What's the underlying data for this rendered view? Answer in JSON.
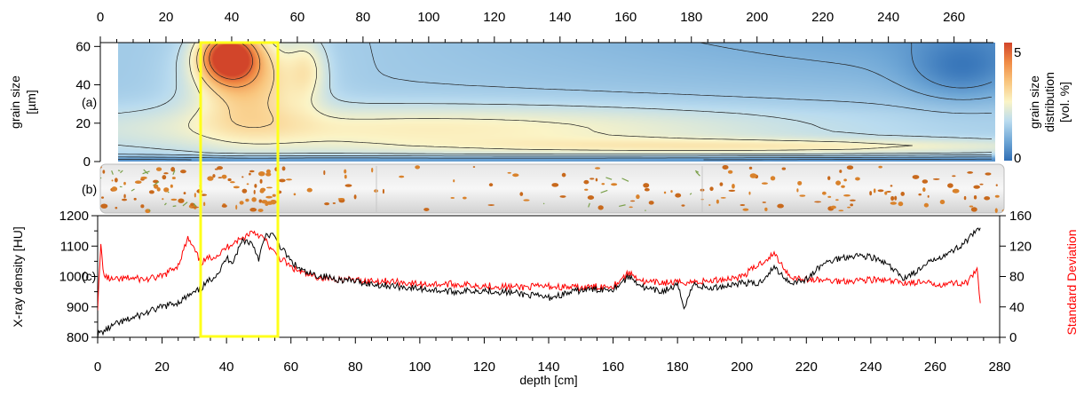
{
  "figure": {
    "panel_labels": [
      "(a)",
      "(b)",
      "(c)"
    ]
  },
  "colors": {
    "highlight_box": "#ffff1a",
    "density_line": "#000000",
    "sd_line": "#ff0000",
    "colormap": [
      "#2f6eb5",
      "#6fa7d6",
      "#b9dbef",
      "#fbf4c6",
      "#f9c67e",
      "#f08b45",
      "#d2452a"
    ]
  },
  "chart_data": [
    {
      "type": "heatmap",
      "panel": "(a)",
      "xlabel": "",
      "ylabel": "grain size [µm]",
      "ylabel_lines": [
        "grain size",
        "[µm]"
      ],
      "top_axis_ticks": [
        "0",
        "20",
        "40",
        "60",
        "80",
        "100",
        "120",
        "140",
        "160",
        "180",
        "200",
        "220",
        "240",
        "260"
      ],
      "xlim": [
        0,
        272
      ],
      "ylim": [
        0,
        62
      ],
      "yticks": [
        "0",
        "20",
        "40",
        "60"
      ],
      "colorbar": {
        "label_lines": [
          "grain size",
          "distribution",
          "[vol. %]"
        ],
        "min_label": "0",
        "max_label": "5",
        "range": [
          0,
          5
        ]
      },
      "contours": "black",
      "hotspots": [
        {
          "x": 39,
          "y": 55,
          "value": 5.0,
          "sx": 6,
          "sy": 9
        },
        {
          "x": 45,
          "y": 42,
          "value": 3.2,
          "sx": 12,
          "sy": 17
        },
        {
          "x": 63,
          "y": 48,
          "value": 2.2,
          "sx": 4,
          "sy": 12
        },
        {
          "x": 100,
          "y": 17,
          "value": 2.6,
          "sx": 80,
          "sy": 9
        },
        {
          "x": 210,
          "y": 8,
          "value": 2.4,
          "sx": 70,
          "sy": 3
        }
      ]
    },
    {
      "type": "image",
      "panel": "(b)",
      "description_marks": "core image"
    },
    {
      "type": "line",
      "panel": "(c)",
      "xlabel": "depth [cm]",
      "ylabel": "X-ray density [HU]",
      "y2label": "Standard Deviation",
      "xlim": [
        0,
        280
      ],
      "ylim": [
        800,
        1200
      ],
      "y2lim": [
        0,
        160
      ],
      "xticks": [
        "0",
        "20",
        "40",
        "60",
        "80",
        "100",
        "120",
        "140",
        "160",
        "180",
        "200",
        "220",
        "240",
        "260",
        "280"
      ],
      "yticks": [
        "800",
        "900",
        "1000",
        "1100",
        "1200"
      ],
      "y2ticks": [
        "0",
        "40",
        "80",
        "120",
        "160"
      ],
      "series": [
        {
          "axis": "left",
          "x": [
            0,
            2,
            5,
            10,
            15,
            20,
            25,
            28,
            30,
            32,
            35,
            38,
            40,
            42,
            45,
            48,
            50,
            52,
            54,
            56,
            58,
            60,
            62,
            65,
            70,
            75,
            80,
            85,
            90,
            95,
            100,
            110,
            120,
            130,
            140,
            150,
            160,
            165,
            170,
            175,
            180,
            182,
            185,
            190,
            195,
            200,
            205,
            210,
            215,
            220,
            225,
            230,
            235,
            240,
            245,
            250,
            255,
            260,
            265,
            270,
            274
          ],
          "values": [
            810,
            820,
            840,
            860,
            880,
            900,
            915,
            935,
            945,
            960,
            990,
            1020,
            1060,
            1050,
            1120,
            1110,
            1060,
            1130,
            1140,
            1110,
            1080,
            1050,
            1030,
            1010,
            1000,
            990,
            985,
            975,
            970,
            965,
            960,
            950,
            955,
            945,
            930,
            955,
            960,
            1000,
            960,
            950,
            970,
            900,
            975,
            960,
            970,
            980,
            975,
            1030,
            980,
            990,
            1040,
            1060,
            1070,
            1065,
            1040,
            995,
            1020,
            1060,
            1080,
            1120,
            1160
          ]
        },
        {
          "axis": "right",
          "x": [
            0,
            1,
            2,
            5,
            10,
            15,
            20,
            25,
            28,
            30,
            32,
            35,
            38,
            40,
            42,
            45,
            48,
            50,
            52,
            54,
            56,
            58,
            60,
            65,
            70,
            80,
            90,
            100,
            110,
            120,
            130,
            140,
            150,
            160,
            165,
            170,
            180,
            190,
            200,
            210,
            215,
            220,
            230,
            240,
            250,
            255,
            260,
            270,
            273,
            274
          ],
          "values": [
            40,
            120,
            80,
            75,
            78,
            76,
            80,
            95,
            130,
            115,
            98,
            105,
            110,
            118,
            125,
            130,
            140,
            135,
            128,
            115,
            105,
            100,
            92,
            82,
            78,
            75,
            74,
            70,
            70,
            68,
            66,
            67,
            65,
            68,
            85,
            72,
            72,
            74,
            80,
            110,
            80,
            76,
            74,
            76,
            72,
            72,
            70,
            72,
            88,
            45
          ]
        }
      ]
    }
  ]
}
